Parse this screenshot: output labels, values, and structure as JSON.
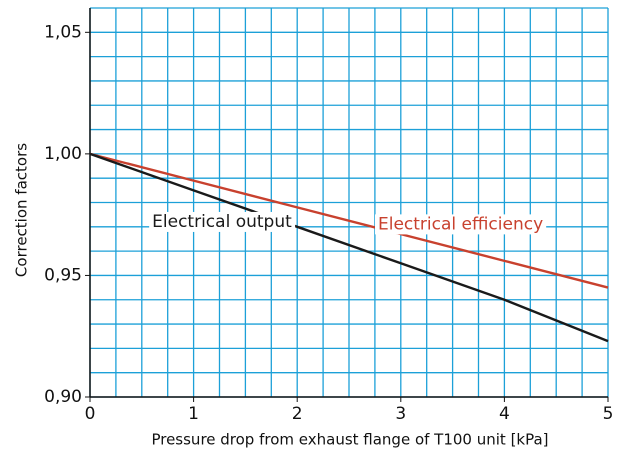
{
  "chart_data": {
    "type": "line",
    "xlabel": "Pressure drop from exhaust flange of T100 unit [kPa]",
    "ylabel": "Correction factors",
    "x": [
      0,
      1,
      2,
      3,
      4,
      5
    ],
    "series": [
      {
        "name": "Electrical efficiency",
        "color": "#c8412e",
        "values": [
          1.0,
          0.989,
          0.978,
          0.967,
          0.956,
          0.945
        ]
      },
      {
        "name": "Electrical output",
        "color": "#1a1a1a",
        "values": [
          1.0,
          0.985,
          0.97,
          0.955,
          0.94,
          0.923
        ]
      }
    ],
    "xlim": [
      0,
      5
    ],
    "ylim": [
      0.9,
      1.06
    ],
    "xticks": [
      0,
      1,
      2,
      3,
      4,
      5
    ],
    "yticks": [
      {
        "value": 0.9,
        "label": "0,90"
      },
      {
        "value": 0.95,
        "label": "0,95"
      },
      {
        "value": 1.0,
        "label": "1,00"
      },
      {
        "value": 1.05,
        "label": "1,05"
      }
    ],
    "xgrid": [
      0,
      0.25,
      0.5,
      0.75,
      1,
      1.25,
      1.5,
      1.75,
      2,
      2.25,
      2.5,
      2.75,
      3,
      3.25,
      3.5,
      3.75,
      4,
      4.25,
      4.5,
      4.75,
      5
    ],
    "ygrid": [
      0.9,
      0.91,
      0.92,
      0.93,
      0.94,
      0.95,
      0.96,
      0.97,
      0.98,
      0.99,
      1.0,
      1.01,
      1.02,
      1.03,
      1.04,
      1.05,
      1.06
    ],
    "grid": true,
    "grid_color": "#1ca0d8"
  }
}
